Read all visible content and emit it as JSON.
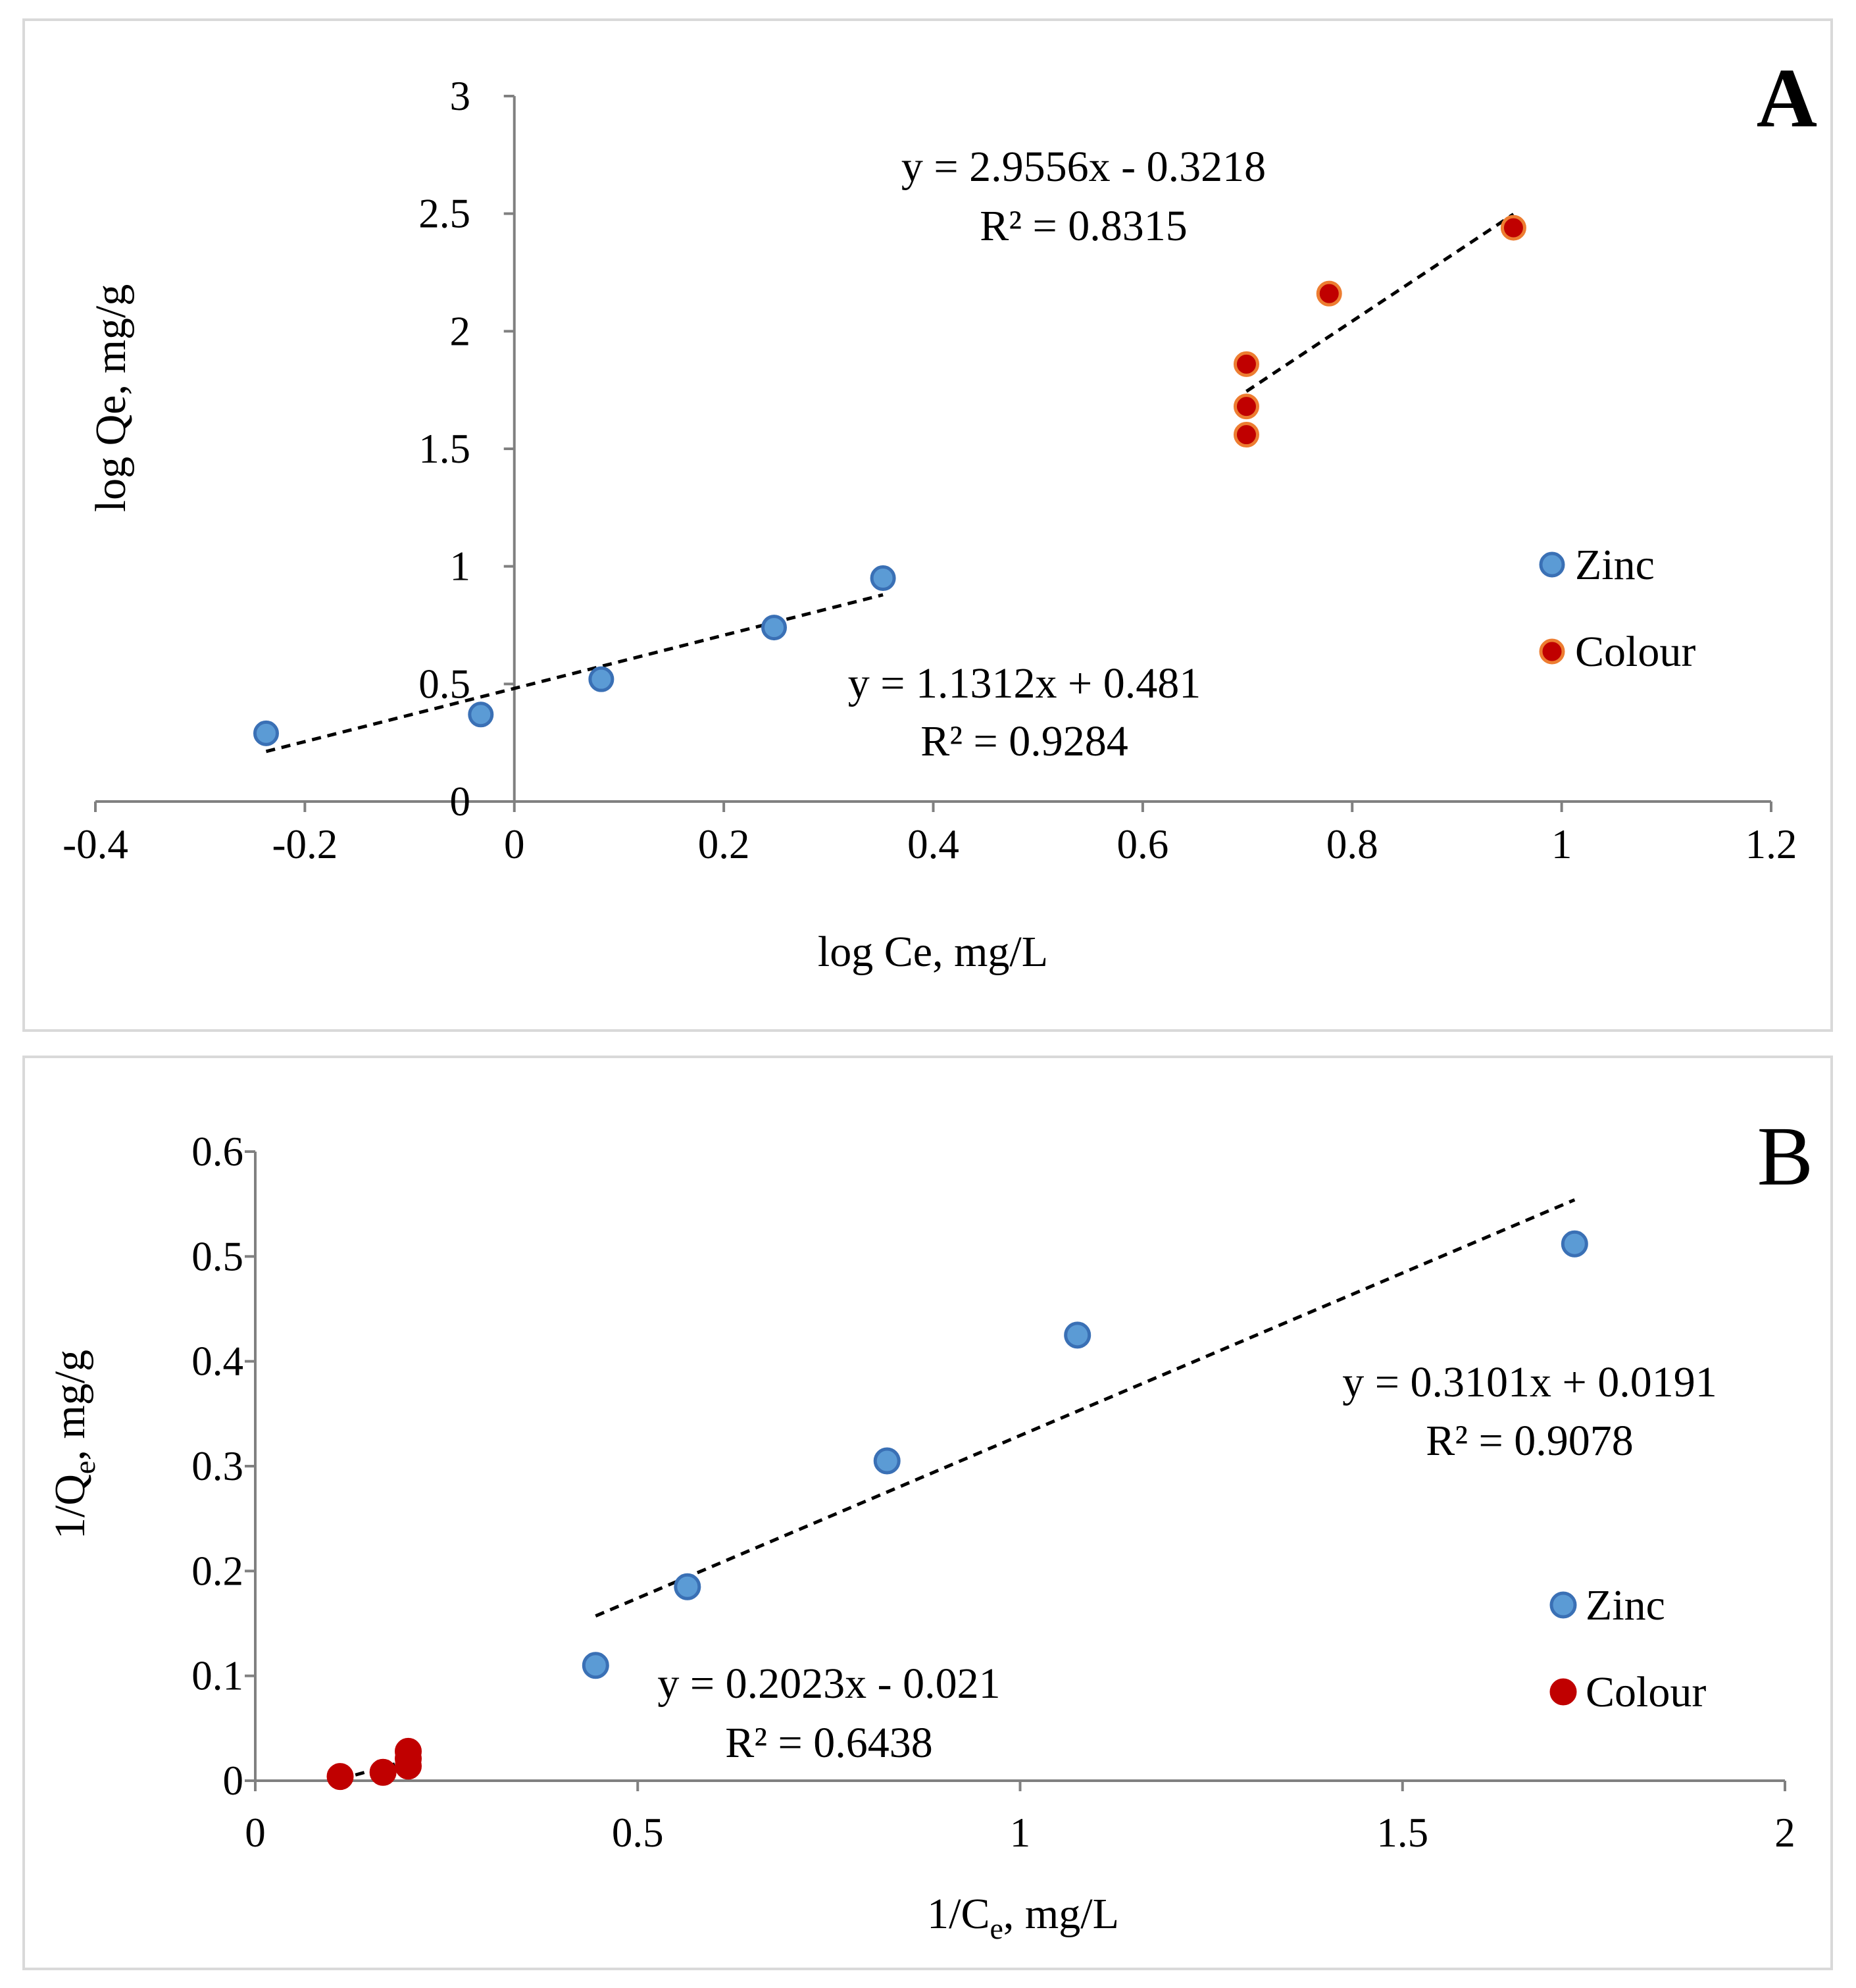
{
  "colors": {
    "zinc_fill": "#5b9bd5",
    "zinc_stroke": "#3a70b5",
    "colour_fill": "#c00000",
    "colour_stroke_A": "#ed7d31",
    "colour_stroke_B": "#c00000",
    "axis": "#808080",
    "trendline": "#000000"
  },
  "chart_data": [
    {
      "type": "scatter",
      "panel_label": "A",
      "xlabel": "log Ce, mg/L",
      "ylabel": "log Qe, mg/g",
      "xlim": [
        -0.4,
        1.2
      ],
      "ylim": [
        0,
        3
      ],
      "x_ticks": [
        -0.4,
        -0.2,
        0,
        0.2,
        0.4,
        0.6,
        0.8,
        1,
        1.2
      ],
      "x_tick_labels": [
        "-0.4",
        "-0.2",
        "0",
        "0.2",
        "0.4",
        "0.6",
        "0.8",
        "1",
        "1.2"
      ],
      "y_ticks": [
        0,
        0.5,
        1,
        1.5,
        2,
        2.5,
        3
      ],
      "y_tick_labels": [
        "0",
        "0.5",
        "1",
        "1.5",
        "2",
        "2.5",
        "3"
      ],
      "legend_position": "right",
      "series": [
        {
          "name": "Zinc",
          "x": [
            -0.237,
            -0.032,
            0.083,
            0.248,
            0.352
          ],
          "y": [
            0.29,
            0.37,
            0.52,
            0.74,
            0.95
          ],
          "trendline": {
            "slope": 1.1312,
            "intercept": 0.481,
            "x_range": [
              -0.237,
              0.352
            ]
          },
          "equation": "y = 1.1312x + 0.481",
          "r2": "R² = 0.9284"
        },
        {
          "name": "Colour",
          "x": [
            0.699,
            0.699,
            0.699,
            0.778,
            0.954
          ],
          "y": [
            1.56,
            1.68,
            1.86,
            2.16,
            2.44
          ],
          "trendline": {
            "slope": 2.9556,
            "intercept": -0.3218,
            "x_range": [
              0.699,
              0.954
            ]
          },
          "equation": "y = 2.9556x - 0.3218",
          "r2": "R² = 0.8315"
        }
      ]
    },
    {
      "type": "scatter",
      "panel_label": "B",
      "xlabel": "1/C",
      "xlabel_sub": "e",
      "xlabel_rest": ", mg/L",
      "ylabel": "1/Q",
      "ylabel_sub": "e",
      "ylabel_rest": ", mg/g",
      "xlim": [
        0,
        2
      ],
      "ylim": [
        0,
        0.6
      ],
      "x_ticks": [
        0,
        0.5,
        1,
        1.5,
        2
      ],
      "x_tick_labels": [
        "0",
        "0.5",
        "1",
        "1.5",
        "2"
      ],
      "y_ticks": [
        0,
        0.1,
        0.2,
        0.3,
        0.4,
        0.5,
        0.6
      ],
      "y_tick_labels": [
        "0",
        "0.1",
        "0.2",
        "0.3",
        "0.4",
        "0.5",
        "0.6"
      ],
      "legend_position": "right",
      "series": [
        {
          "name": "Zinc",
          "x": [
            0.445,
            0.565,
            0.826,
            1.075,
            1.725
          ],
          "y": [
            0.11,
            0.185,
            0.305,
            0.425,
            0.512
          ],
          "trendline": {
            "slope": 0.3101,
            "intercept": 0.0191,
            "x_range": [
              0.445,
              1.725
            ]
          },
          "equation": "y = 0.3101x + 0.0191",
          "r2": "R² = 0.9078"
        },
        {
          "name": "Colour",
          "x": [
            0.111,
            0.167,
            0.2,
            0.2,
            0.2
          ],
          "y": [
            0.004,
            0.008,
            0.014,
            0.021,
            0.028
          ],
          "trendline": {
            "slope": 0.2023,
            "intercept": -0.021,
            "x_range": [
              0.111,
              0.2
            ]
          },
          "equation": "y = 0.2023x - 0.021",
          "r2": "R² = 0.6438"
        }
      ]
    }
  ]
}
